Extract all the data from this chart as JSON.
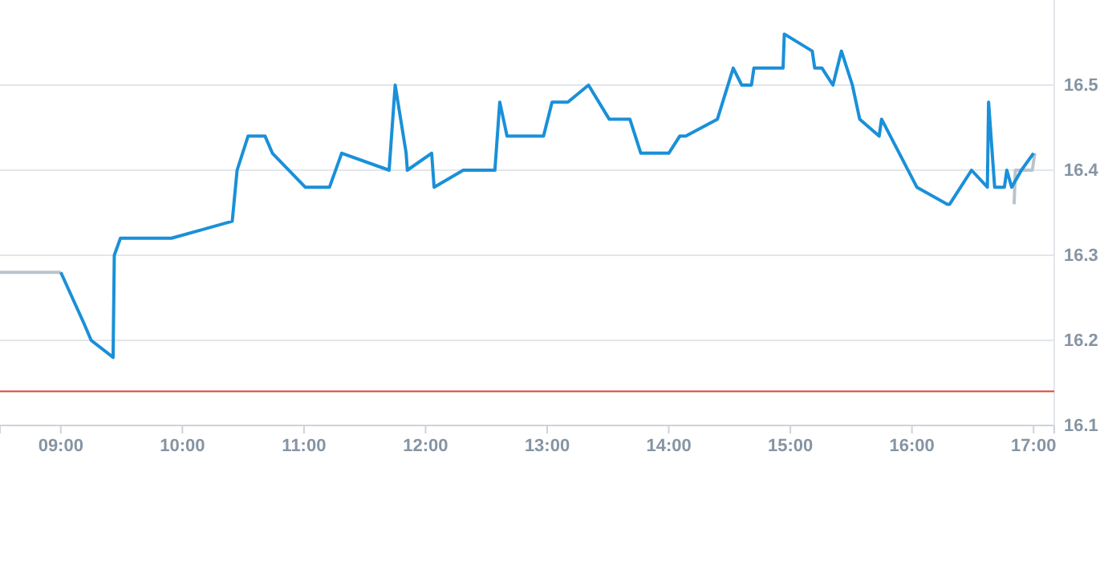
{
  "chart_data": {
    "type": "line",
    "xlim": [
      8.5,
      17.17
    ],
    "ylim": [
      16.1,
      16.6
    ],
    "xticks": [
      {
        "value": 9,
        "label": "09:00"
      },
      {
        "value": 10,
        "label": "10:00"
      },
      {
        "value": 11,
        "label": "11:00"
      },
      {
        "value": 12,
        "label": "12:00"
      },
      {
        "value": 13,
        "label": "13:00"
      },
      {
        "value": 14,
        "label": "14:00"
      },
      {
        "value": 15,
        "label": "15:00"
      },
      {
        "value": 16,
        "label": "16:00"
      },
      {
        "value": 17,
        "label": "17:00"
      }
    ],
    "yticks": [
      16.1,
      16.2,
      16.3,
      16.4,
      16.5
    ],
    "grid": "y",
    "marker": "none",
    "line_style": "solid",
    "ref_lines": [
      {
        "axis": "y",
        "value": 16.14,
        "color": "#d9453b"
      }
    ],
    "series": [
      {
        "color": "#b8c4cf",
        "x": [
          8.5,
          9.0
        ],
        "values": [
          16.28,
          16.28
        ]
      },
      {
        "color": "#b8c4cf",
        "x": [
          16.84,
          16.85,
          16.99,
          17.01
        ],
        "values": [
          16.36,
          16.4,
          16.4,
          16.42
        ]
      },
      {
        "color": "#1a90d8",
        "x": [
          9.0,
          9.19,
          9.25,
          9.43,
          9.44,
          9.49,
          9.91,
          10.41,
          10.45,
          10.54,
          10.68,
          10.74,
          11.01,
          11.21,
          11.31,
          11.7,
          11.75,
          11.84,
          11.85,
          12.05,
          12.07,
          12.31,
          12.57,
          12.61,
          12.67,
          12.97,
          13.04,
          13.17,
          13.34,
          13.51,
          13.68,
          13.77,
          14.0,
          14.09,
          14.14,
          14.4,
          14.53,
          14.6,
          14.68,
          14.7,
          14.94,
          14.95,
          15.18,
          15.2,
          15.26,
          15.35,
          15.42,
          15.51,
          15.57,
          15.73,
          15.75,
          16.04,
          16.29,
          16.31,
          16.49,
          16.62,
          16.63,
          16.68,
          16.76,
          16.78,
          16.82,
          16.9,
          17.0
        ],
        "values": [
          16.28,
          16.22,
          16.2,
          16.18,
          16.3,
          16.32,
          16.32,
          16.34,
          16.4,
          16.44,
          16.44,
          16.42,
          16.38,
          16.38,
          16.42,
          16.4,
          16.5,
          16.42,
          16.4,
          16.42,
          16.38,
          16.4,
          16.4,
          16.48,
          16.44,
          16.44,
          16.48,
          16.48,
          16.5,
          16.46,
          16.46,
          16.42,
          16.42,
          16.44,
          16.44,
          16.46,
          16.52,
          16.5,
          16.5,
          16.52,
          16.52,
          16.56,
          16.54,
          16.52,
          16.52,
          16.5,
          16.54,
          16.5,
          16.46,
          16.44,
          16.46,
          16.38,
          16.36,
          16.36,
          16.4,
          16.38,
          16.48,
          16.38,
          16.38,
          16.4,
          16.38,
          16.4,
          16.42
        ]
      }
    ]
  }
}
